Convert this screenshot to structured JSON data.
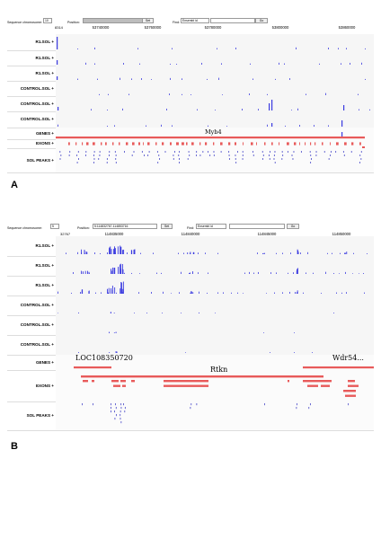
{
  "panel_a": {
    "letter": "A",
    "toolbar": {
      "sequence_label": "Sequence chromosome:",
      "sequence_value": "10",
      "position_label": "Position:",
      "position_value": "",
      "set_label": "Set",
      "find_label": "Find:",
      "find_value": "Ensembl id",
      "go_label": "Go"
    },
    "ruler": {
      "start": "8314",
      "ticks": [
        "53740000",
        "53760000",
        "53780000",
        "53800000",
        "53860000"
      ]
    },
    "tracks": [
      {
        "label": "R1.SOL"
      },
      {
        "label": "R1.SOL"
      },
      {
        "label": "R1.SOL"
      },
      {
        "label": "CONTROL.SOL"
      },
      {
        "label": "CONTROL.SOL"
      },
      {
        "label": "CONTROL.SOL"
      },
      {
        "label": "GENES"
      },
      {
        "label": "EXONS"
      },
      {
        "label": "SOL PEAKS"
      }
    ],
    "gene_name": "Myb4"
  },
  "panel_b": {
    "letter": "B",
    "toolbar": {
      "sequence_label": "Sequence chromosome:",
      "sequence_value": "5",
      "position_label": "Position:",
      "position_value": "5:114832767-114853716",
      "set_label": "Set",
      "find_label": "Find:",
      "find_value": "Ensembl id",
      "go_label": "Go"
    },
    "ruler": {
      "start": "32767",
      "ticks": [
        "114835000",
        "114840000",
        "114845000",
        "114850000"
      ]
    },
    "tracks": [
      {
        "label": "R1.SOL"
      },
      {
        "label": "R1.SOL"
      },
      {
        "label": "R1.SOL"
      },
      {
        "label": "CONTROL.SOL"
      },
      {
        "label": "CONTROL.SOL"
      },
      {
        "label": "CONTROL.SOL"
      },
      {
        "label": "GENES"
      },
      {
        "label": "EXONS"
      },
      {
        "label": "SOL PEAKS"
      }
    ],
    "gene_names": [
      "LOC108350720",
      "Rtkn",
      "Wdr54..."
    ]
  },
  "colors": {
    "signal": "#3a3ae0",
    "gene": "#e85a5a",
    "peak": "#4848c8"
  }
}
